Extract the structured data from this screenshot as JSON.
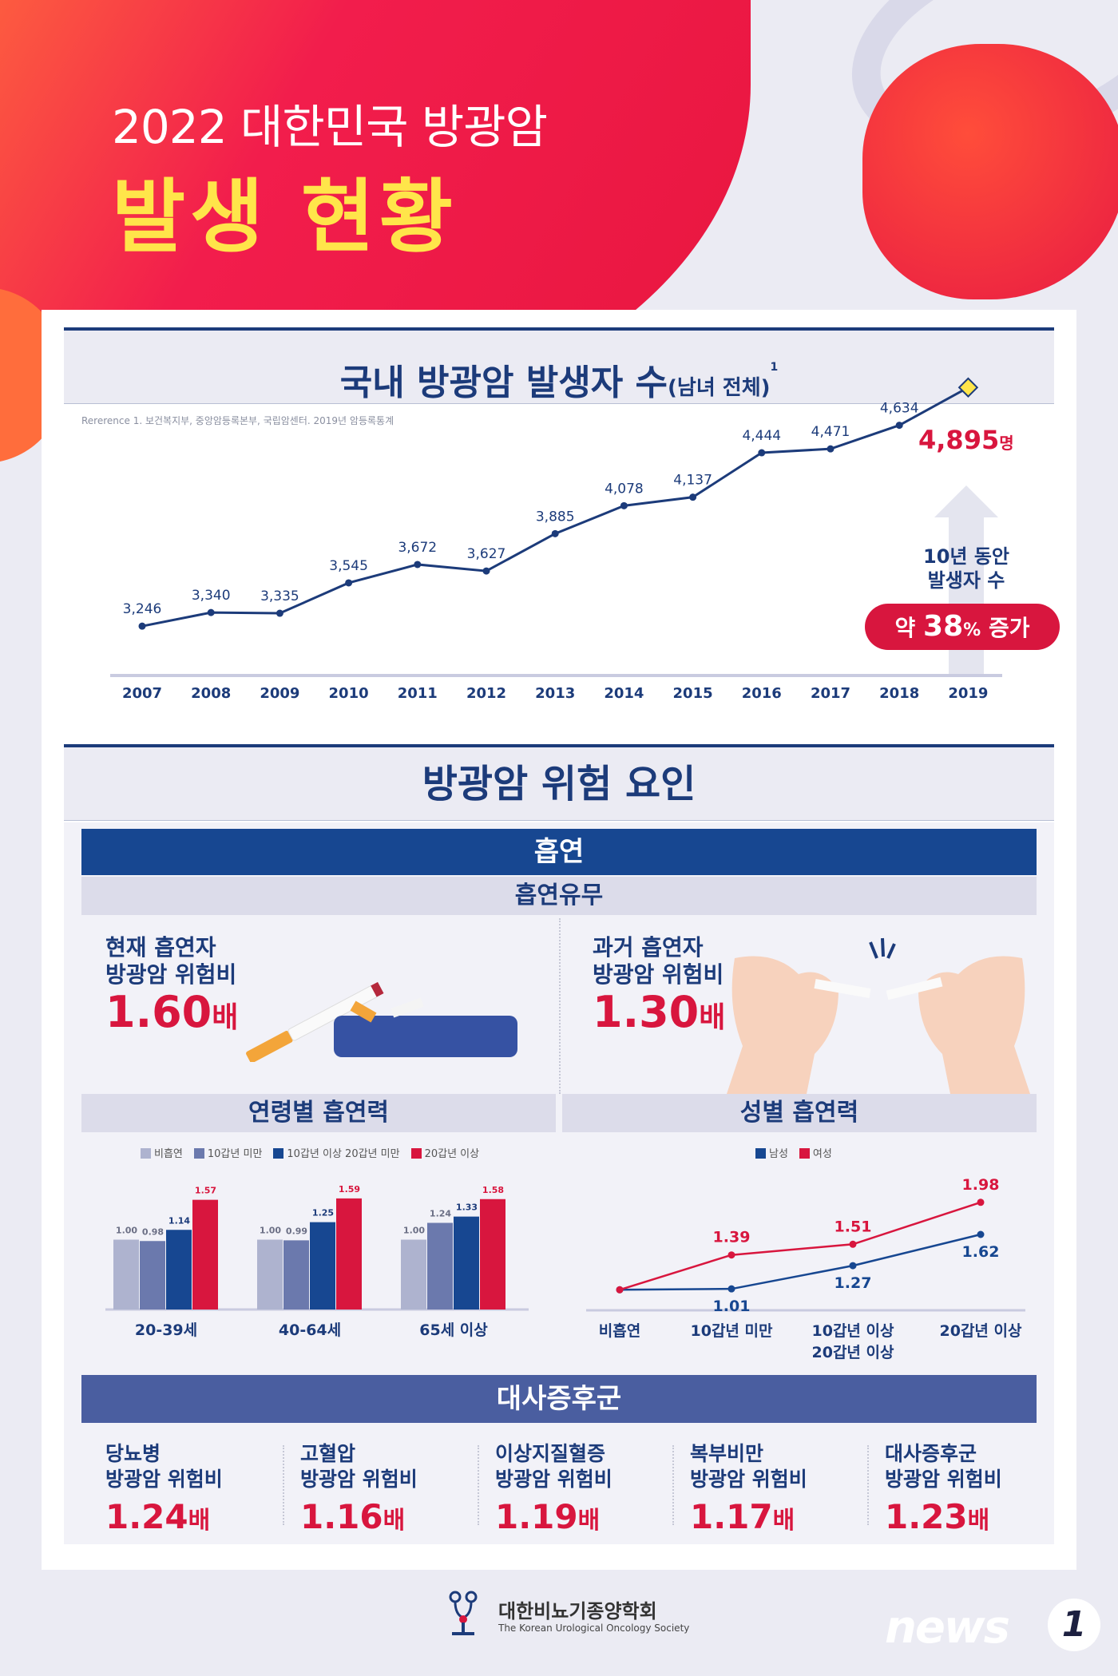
{
  "header": {
    "title_line1": "2022 대한민국 방광암",
    "title_line2": "발생 현황"
  },
  "incidence": {
    "heading": "국내 방광암 발생자 수",
    "heading_sub": "(남녀 전체)",
    "heading_sup": "1",
    "reference": "Rererence 1. 보건복지부, 중앙암등록본부, 국립암센터. 2019년 암등록통계",
    "final_value_label": "4,895",
    "final_value_unit": "명",
    "note_line1": "10년 동안",
    "note_line2": "발생자 수",
    "pill_prefix": "약",
    "pill_value": "38",
    "pill_unit": "%",
    "pill_suffix": "증가"
  },
  "risk": {
    "heading": "방광암 위험 요인",
    "smoking": {
      "title": "흡연",
      "subtitle": "흡연유무",
      "current": {
        "line1": "현재 흡연자",
        "line2": "방광암 위험비",
        "value": "1.60",
        "unit": "배"
      },
      "past": {
        "line1": "과거 흡연자",
        "line2": "방광암 위험비",
        "value": "1.30",
        "unit": "배"
      },
      "age_title": "연령별 흡연력",
      "sex_title": "성별 흡연력"
    },
    "metabolic": {
      "title": "대사증후군",
      "items": [
        {
          "line1": "당뇨병",
          "line2": "방광암 위험비",
          "value": "1.24",
          "unit": "배"
        },
        {
          "line1": "고혈압",
          "line2": "방광암 위험비",
          "value": "1.16",
          "unit": "배"
        },
        {
          "line1": "이상지질혈증",
          "line2": "방광암 위험비",
          "value": "1.19",
          "unit": "배"
        },
        {
          "line1": "복부비만",
          "line2": "방광암 위험비",
          "value": "1.17",
          "unit": "배"
        },
        {
          "line1": "대사증후군",
          "line2": "방광암 위험비",
          "value": "1.23",
          "unit": "배"
        }
      ]
    }
  },
  "colors": {
    "navy": "#1c3b7a",
    "red": "#d8163e",
    "gray_bar": "#aeb3cf",
    "mid_bar": "#6b79ad",
    "dark_bar": "#174791",
    "yellow": "#ffe54a"
  },
  "chart_data": [
    {
      "type": "line",
      "x": [
        "2007",
        "2008",
        "2009",
        "2010",
        "2011",
        "2012",
        "2013",
        "2014",
        "2015",
        "2016",
        "2017",
        "2018",
        "2019"
      ],
      "values": [
        3246,
        3340,
        3335,
        3545,
        3672,
        3627,
        3885,
        4078,
        4137,
        4444,
        4471,
        4634,
        4895
      ],
      "value_labels": [
        "3,246",
        "3,340",
        "3,335",
        "3,545",
        "3,672",
        "3,627",
        "3,885",
        "4,078",
        "4,137",
        "4,444",
        "4,471",
        "4,634",
        "4,895"
      ],
      "title": "국내 방광암 발생자 수",
      "ylim": [
        2000,
        5200
      ]
    },
    {
      "type": "bar",
      "categories": [
        "20-39세",
        "40-64세",
        "65세 이상"
      ],
      "series": [
        {
          "name": "비흡연",
          "values": [
            1.0,
            1.0,
            1.0
          ],
          "labels": [
            "1.00",
            "1.00",
            "1.00"
          ],
          "color": "#aeb3cf"
        },
        {
          "name": "10갑년 미만",
          "values": [
            0.98,
            0.99,
            1.24
          ],
          "labels": [
            "0.98",
            "0.99",
            "1.24"
          ],
          "color": "#6b79ad"
        },
        {
          "name": "10갑년 이상 20갑년 미만",
          "values": [
            1.14,
            1.25,
            1.33
          ],
          "labels": [
            "1.14",
            "1.25",
            "1.33"
          ],
          "color": "#174791"
        },
        {
          "name": "20갑년 이상",
          "values": [
            1.57,
            1.59,
            1.58
          ],
          "labels": [
            "1.57",
            "1.59",
            "1.58"
          ],
          "color": "#d8163e"
        }
      ],
      "title": "연령별 흡연력",
      "ylim": [
        0,
        1.7
      ],
      "legend": "top"
    },
    {
      "type": "line",
      "categories": [
        "비흡연",
        "10갑년 미만",
        "10갑년 이상\n20갑년 이상",
        "20갑년 이상"
      ],
      "category_lines": [
        [
          "비흡연"
        ],
        [
          "10갑년 미만"
        ],
        [
          "10갑년 이상",
          "20갑년 이상"
        ],
        [
          "20갑년 이상"
        ]
      ],
      "series": [
        {
          "name": "남성",
          "values": [
            1.0,
            1.01,
            1.27,
            1.62
          ],
          "labels": [
            "",
            "1.01",
            "1.27",
            "1.62"
          ],
          "color": "#174791"
        },
        {
          "name": "여성",
          "values": [
            1.0,
            1.39,
            1.51,
            1.98
          ],
          "labels": [
            "",
            "1.39",
            "1.51",
            "1.98"
          ],
          "color": "#d8163e"
        }
      ],
      "title": "성별 흡연력",
      "ylim": [
        0.6,
        2.3
      ],
      "legend": "top"
    }
  ]
}
